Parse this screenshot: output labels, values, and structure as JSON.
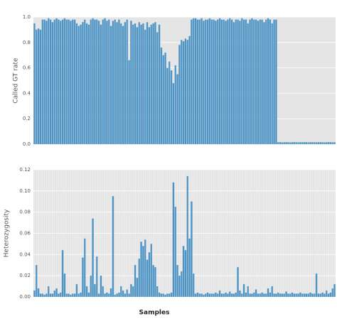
{
  "chart_data": [
    {
      "type": "bar",
      "ylabel": "Called GT rate",
      "color": "#4c92c3",
      "grid": true,
      "ylim": [
        0,
        1
      ],
      "yticks": [
        {
          "value": 0,
          "label": "0.0"
        },
        0.2,
        0.4,
        0.6,
        0.8,
        {
          "value": 1,
          "label": "1.0"
        }
      ],
      "values": [
        0.95,
        0.9,
        0.91,
        0.9,
        0.98,
        0.98,
        0.97,
        0.99,
        0.98,
        0.96,
        0.98,
        0.99,
        0.98,
        0.97,
        0.98,
        0.99,
        0.98,
        0.98,
        0.97,
        0.98,
        0.98,
        0.95,
        0.93,
        0.94,
        0.96,
        0.98,
        0.95,
        0.94,
        0.98,
        0.99,
        0.98,
        0.98,
        0.97,
        0.94,
        0.98,
        0.99,
        0.97,
        0.98,
        0.93,
        0.97,
        0.98,
        0.96,
        0.98,
        0.95,
        0.93,
        0.96,
        0.98,
        0.66,
        0.97,
        0.94,
        0.95,
        0.92,
        0.96,
        0.94,
        0.95,
        0.9,
        0.96,
        0.92,
        0.94,
        0.95,
        0.96,
        0.88,
        0.94,
        0.76,
        0.7,
        0.72,
        0.6,
        0.65,
        0.58,
        0.48,
        0.62,
        0.55,
        0.78,
        0.82,
        0.81,
        0.83,
        0.82,
        0.85,
        0.98,
        0.99,
        0.99,
        0.98,
        0.98,
        0.99,
        0.97,
        0.98,
        0.98,
        0.99,
        0.98,
        0.98,
        0.97,
        0.98,
        0.99,
        0.98,
        0.98,
        0.97,
        0.98,
        0.99,
        0.98,
        0.96,
        0.98,
        0.98,
        0.97,
        0.99,
        0.98,
        0.98,
        0.95,
        0.98,
        0.99,
        0.98,
        0.98,
        0.97,
        0.98,
        0.98,
        0.96,
        0.98,
        0.99,
        0.98,
        0.95,
        0.98,
        0.98,
        0.015,
        0.016,
        0.014,
        0.015,
        0.016,
        0.015,
        0.014,
        0.015,
        0.016,
        0.015,
        0.014,
        0.015,
        0.016,
        0.015,
        0.015,
        0.014,
        0.016,
        0.015,
        0.015,
        0.014,
        0.015,
        0.016,
        0.015,
        0.014,
        0.015,
        0.016,
        0.015,
        0.014,
        0.015
      ]
    },
    {
      "type": "bar",
      "ylabel": "Heterozygosity",
      "xlabel": "Samples",
      "color": "#4c92c3",
      "grid": true,
      "ylim": [
        0,
        0.12
      ],
      "yticks": [
        {
          "value": 0,
          "label": "0.00"
        },
        {
          "value": 0.02,
          "label": "0.02"
        },
        {
          "value": 0.04,
          "label": "0.04"
        },
        {
          "value": 0.06,
          "label": "0.06"
        },
        {
          "value": 0.08,
          "label": "0.08"
        },
        {
          "value": 0.1,
          "label": "0.10"
        },
        {
          "value": 0.12,
          "label": "0.12"
        }
      ],
      "values": [
        0.006,
        0.03,
        0.008,
        0.003,
        0.003,
        0.002,
        0.003,
        0.01,
        0.003,
        0.003,
        0.006,
        0.008,
        0.003,
        0.004,
        0.044,
        0.022,
        0.003,
        0.003,
        0.002,
        0.003,
        0.003,
        0.012,
        0.003,
        0.004,
        0.037,
        0.055,
        0.01,
        0.004,
        0.02,
        0.074,
        0.012,
        0.038,
        0.003,
        0.02,
        0.01,
        0.003,
        0.004,
        0.003,
        0.008,
        0.095,
        0.002,
        0.003,
        0.004,
        0.01,
        0.006,
        0.003,
        0.007,
        0.003,
        0.012,
        0.01,
        0.03,
        0.018,
        0.036,
        0.052,
        0.048,
        0.054,
        0.035,
        0.042,
        0.05,
        0.03,
        0.028,
        0.01,
        0.004,
        0.003,
        0.003,
        0.002,
        0.003,
        0.003,
        0.004,
        0.108,
        0.085,
        0.03,
        0.02,
        0.024,
        0.048,
        0.044,
        0.114,
        0.055,
        0.09,
        0.022,
        0.003,
        0.004,
        0.003,
        0.003,
        0.002,
        0.003,
        0.004,
        0.003,
        0.003,
        0.003,
        0.004,
        0.003,
        0.006,
        0.003,
        0.003,
        0.004,
        0.003,
        0.005,
        0.003,
        0.003,
        0.004,
        0.028,
        0.006,
        0.003,
        0.012,
        0.004,
        0.01,
        0.003,
        0.003,
        0.004,
        0.007,
        0.003,
        0.003,
        0.004,
        0.003,
        0.003,
        0.008,
        0.004,
        0.01,
        0.003,
        0.003,
        0.004,
        0.003,
        0.003,
        0.003,
        0.005,
        0.003,
        0.003,
        0.004,
        0.003,
        0.003,
        0.003,
        0.004,
        0.003,
        0.003,
        0.003,
        0.003,
        0.004,
        0.003,
        0.003,
        0.022,
        0.003,
        0.003,
        0.004,
        0.003,
        0.006,
        0.003,
        0.004,
        0.008,
        0.012
      ]
    }
  ]
}
